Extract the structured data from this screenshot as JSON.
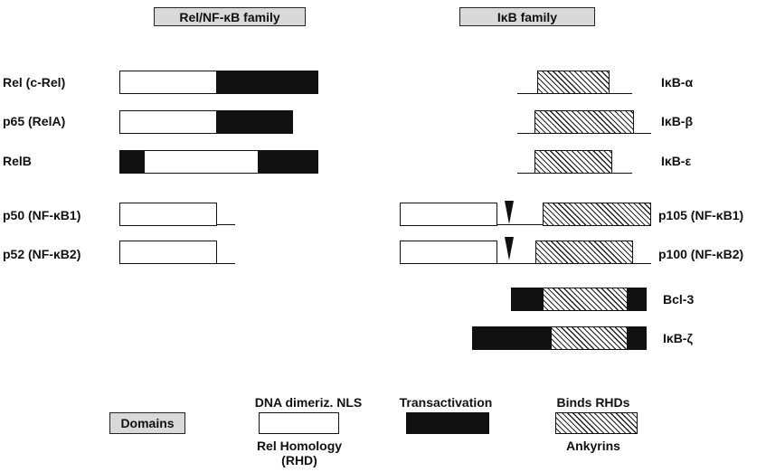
{
  "headers": {
    "rel_family": "Rel/NF-κB family",
    "ikb_family": "IκB family"
  },
  "rel_proteins": [
    {
      "name": "Rel (c-Rel)"
    },
    {
      "name": "p65 (RelA)"
    },
    {
      "name": "RelB"
    },
    {
      "name": "p50 (NF-κB1)"
    },
    {
      "name": "p52 (NF-κB2)"
    }
  ],
  "ikb_proteins": [
    {
      "name": "IκB-α"
    },
    {
      "name": "IκB-β"
    },
    {
      "name": "IκB-ε"
    },
    {
      "name": "p105 (NF-κB1)"
    },
    {
      "name": "p100 (NF-κB2)"
    },
    {
      "name": "Bcl-3"
    },
    {
      "name": "IκB-ζ"
    }
  ],
  "legend": {
    "domains": "Domains",
    "rhd_top": "DNA dimeriz. NLS",
    "rhd_bottom_1": "Rel Homology",
    "rhd_bottom_2": "(RHD)",
    "transactivation": "Transactivation",
    "ankyrin_top": "Binds RHDs",
    "ankyrin_bottom": "Ankyrins"
  },
  "colors": {
    "rhd": "#ffffff",
    "transactivation": "#111111",
    "header_fill": "#d9d9d9"
  }
}
